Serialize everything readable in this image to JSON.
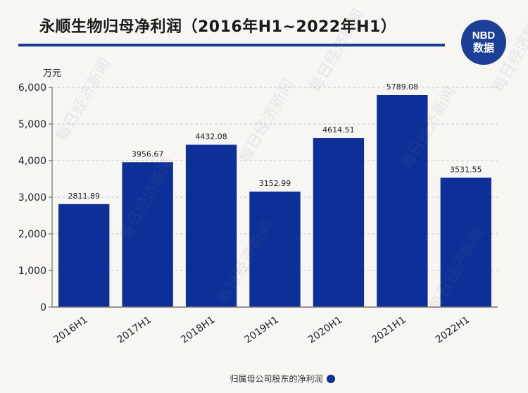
{
  "header": {
    "title": "永顺生物归母净利润（2016年H1~2022年H1）",
    "logo_top": "NBD",
    "logo_bottom": "数据"
  },
  "watermark": "每日经济新闻",
  "colors": {
    "bar": "#0d2f97",
    "rule": "#163e93",
    "background": "#f8f6f2"
  },
  "chart_data": {
    "type": "bar",
    "title": "永顺生物归母净利润（2016年H1~2022年H1）",
    "unit_label": "万元",
    "ylabel": "万元",
    "xlabel": "",
    "ylim": [
      0,
      6000
    ],
    "yticks": [
      0,
      1000,
      2000,
      3000,
      4000,
      5000,
      6000
    ],
    "ytick_labels": [
      "0",
      "1,000",
      "2,000",
      "3,000",
      "4,000",
      "5,000",
      "6,000"
    ],
    "categories": [
      "2016H1",
      "2017H1",
      "2018H1",
      "2019H1",
      "2020H1",
      "2021H1",
      "2022H1"
    ],
    "series": [
      {
        "name": "归属母公司股东的净利润",
        "values": [
          2811.89,
          3956.67,
          4432.08,
          3152.99,
          4614.51,
          5789.08,
          3531.55
        ],
        "labels": [
          "2811.89",
          "3956.67",
          "4432.08",
          "3152.99",
          "4614.51",
          "5789.08",
          "3531.55"
        ]
      }
    ],
    "legend": "bottom-center",
    "grid": true
  }
}
